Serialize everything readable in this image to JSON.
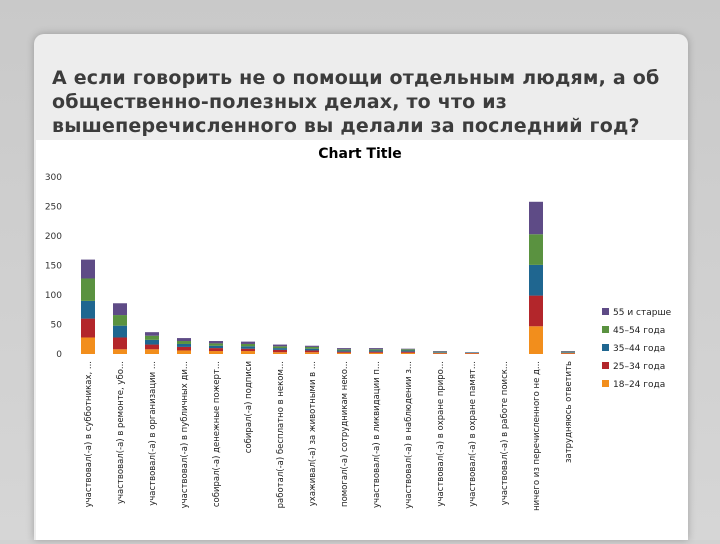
{
  "slide": {
    "title": "А если говорить не о помощи отдельным людям, а об общественно-полезных делах, то что из вышеперечисленного вы делали за последний год?"
  },
  "chart_data": {
    "type": "bar",
    "stacked": true,
    "title": "Chart Title",
    "xlabel": "",
    "ylabel": "",
    "ylim": [
      0,
      300
    ],
    "yticks": [
      0,
      50,
      100,
      150,
      200,
      250,
      300
    ],
    "grid": false,
    "legend_position": "right",
    "categories": [
      "участвовал(-а) в субботниках, ...",
      "участвовал(-а) в ремонте, убо...",
      "участвовал(-а) в организации ...",
      "участвовал(-а) в публичных ди...",
      "собирал(-а) денежные пожерт...",
      "собирал(-а) подписи",
      "работал(-а) бесплатно в неком...",
      "ухаживал(-а) за животными в ...",
      "помогал(-а) сотрудникам неко...",
      "участвовал(-а) в ликвидации п...",
      "участвовал(-а) в наблюдении з...",
      "участвовал(-а) в охране приро...",
      "участвовал(-а) в охране памят...",
      "участвовал(-а) в работе поиск...",
      "ничего из перечисленного не д...",
      "затрудняюсь ответить"
    ],
    "series": [
      {
        "name": "18–24 года",
        "color": "#f28e1c",
        "values": [
          28,
          8,
          8,
          6,
          5,
          5,
          3,
          3,
          2,
          2,
          2,
          1,
          1,
          0,
          47,
          1
        ]
      },
      {
        "name": "25–34 года",
        "color": "#b3262b",
        "values": [
          32,
          20,
          8,
          6,
          5,
          4,
          4,
          3,
          2,
          2,
          2,
          1,
          1,
          0,
          52,
          1
        ]
      },
      {
        "name": "35–44 года",
        "color": "#1f6690",
        "values": [
          30,
          20,
          8,
          5,
          4,
          4,
          3,
          3,
          2,
          2,
          2,
          1,
          1,
          0,
          52,
          1
        ]
      },
      {
        "name": "45–54 года",
        "color": "#5a9240",
        "values": [
          38,
          18,
          7,
          5,
          4,
          4,
          3,
          3,
          2,
          2,
          2,
          1,
          0,
          0,
          52,
          1
        ]
      },
      {
        "name": "55 и старше",
        "color": "#5e4b86",
        "values": [
          32,
          20,
          6,
          5,
          4,
          4,
          3,
          2,
          2,
          2,
          1,
          1,
          0,
          0,
          55,
          1
        ]
      }
    ]
  }
}
